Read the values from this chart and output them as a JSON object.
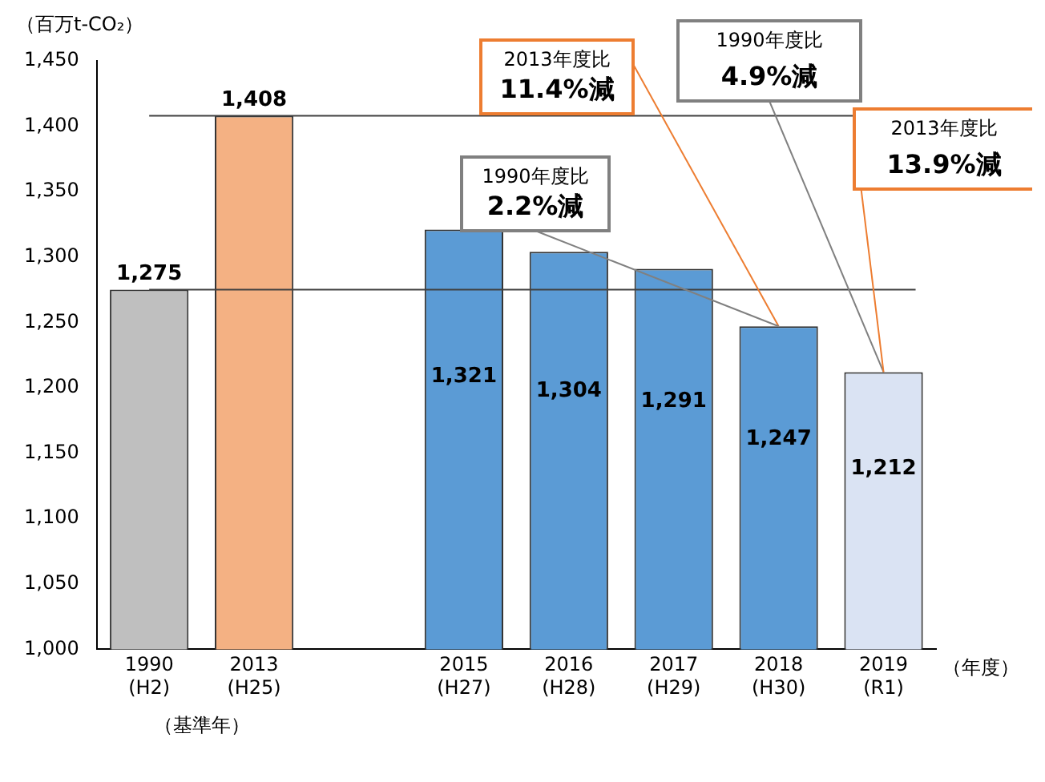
{
  "chart_data": {
    "type": "bar",
    "ylabel": "（百万t-CO₂）",
    "categories": [
      "1990\n(H2)",
      "2013\n(H25)",
      null,
      "2015\n(H27)",
      "2016\n(H28)",
      "2017\n(H29)",
      "2018\n(H30)",
      "2019\n(R1)"
    ],
    "values": [
      1275,
      1408,
      null,
      1321,
      1304,
      1291,
      1247,
      1212
    ],
    "colors": [
      "#bfbfbf",
      "#f4b183",
      "#ffffff",
      "#5b9bd5",
      "#5b9bd5",
      "#5b9bd5",
      "#5b9bd5",
      "#dae3f3"
    ],
    "value_labels": [
      "1,275",
      "1,408",
      null,
      "1,321",
      "1,304",
      "1,291",
      "1,247",
      "1,212"
    ],
    "ylim": [
      1000,
      1450
    ],
    "yticks": [
      {
        "value": 1000,
        "label": "1,000"
      },
      {
        "value": 1050,
        "label": "1,050"
      },
      {
        "value": 1100,
        "label": "1,100"
      },
      {
        "value": 1150,
        "label": "1,150"
      },
      {
        "value": 1200,
        "label": "1,200"
      },
      {
        "value": 1250,
        "label": "1,250"
      },
      {
        "value": 1300,
        "label": "1,300"
      },
      {
        "value": 1350,
        "label": "1,350"
      },
      {
        "value": 1400,
        "label": "1,400"
      },
      {
        "value": 1450,
        "label": "1,450"
      }
    ],
    "ref_lines": [
      {
        "axis": "y",
        "value": 1408,
        "color": "#404040"
      },
      {
        "axis": "y",
        "value": 1275,
        "color": "#404040"
      }
    ],
    "annotations": [
      {
        "text": "2013年度比\n11.4%減",
        "x": "2018\n(H30)",
        "y": 1247
      },
      {
        "text": "1990年度比\n4.9%減",
        "x": "2019\n(R1)",
        "y": 1212
      },
      {
        "text": "2013年度比\n13.9%減",
        "x": "2019\n(R1)",
        "y": 1212
      },
      {
        "text": "1990年度比\n2.2%減",
        "x": "2018\n(H30)",
        "y": 1247
      },
      "（基準年）",
      "（年度）"
    ],
    "grid": false,
    "legend": false
  }
}
